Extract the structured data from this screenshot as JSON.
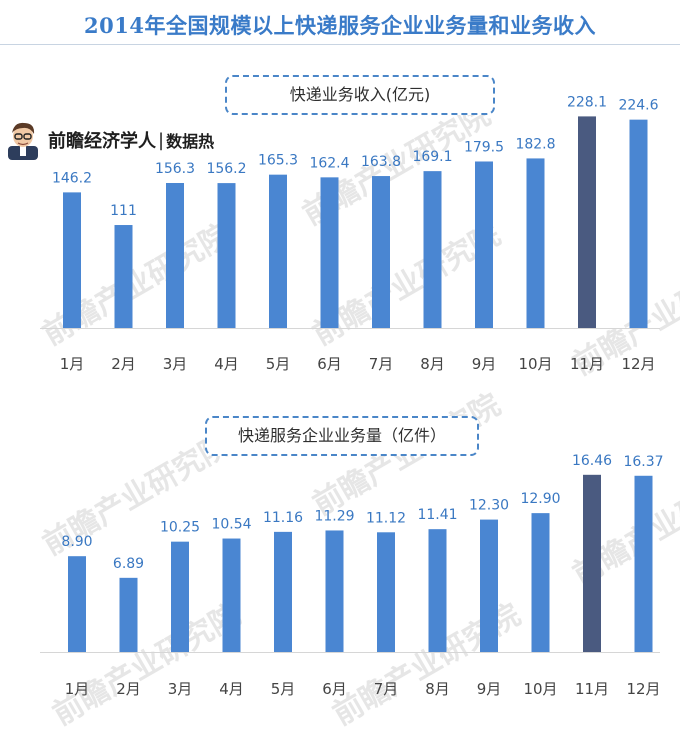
{
  "title": "2014年全国规模以上快递服务企业业务量和业务收入",
  "author": {
    "name": "前瞻经济学人",
    "separator": "|",
    "tag": "数据热"
  },
  "watermark": "前瞻产业研究院",
  "colors": {
    "bar": "#4a86d2",
    "highlight": "#4a5a80",
    "label": "#3a78c2",
    "axis": "#444444"
  },
  "chart_data": [
    {
      "type": "bar",
      "title": "快递业务收入(亿元)",
      "categories": [
        "1月",
        "2月",
        "3月",
        "4月",
        "5月",
        "6月",
        "7月",
        "8月",
        "9月",
        "10月",
        "11月",
        "12月"
      ],
      "values": [
        146.2,
        111,
        156.3,
        156.2,
        165.3,
        162.4,
        163.8,
        169.1,
        179.5,
        182.8,
        228.1,
        224.6
      ],
      "value_labels": [
        "146.2",
        "111",
        "156.3",
        "156.2",
        "165.3",
        "162.4",
        "163.8",
        "169.1",
        "179.5",
        "182.8",
        "228.1",
        "224.6"
      ],
      "highlight_index": 10,
      "ylim": [
        0,
        235
      ],
      "grid": false,
      "xlabel": "",
      "ylabel": ""
    },
    {
      "type": "bar",
      "title": "快递服务企业业务量（亿件）",
      "categories": [
        "1月",
        "2月",
        "3月",
        "4月",
        "5月",
        "6月",
        "7月",
        "8月",
        "9月",
        "10月",
        "11月",
        "12月"
      ],
      "values": [
        8.9,
        6.89,
        10.25,
        10.54,
        11.16,
        11.29,
        11.12,
        11.41,
        12.3,
        12.9,
        16.46,
        16.37
      ],
      "value_labels": [
        "8.90",
        "6.89",
        "10.25",
        "10.54",
        "11.16",
        "11.29",
        "11.12",
        "11.41",
        "12.30",
        "12.90",
        "16.46",
        "16.37"
      ],
      "highlight_index": 10,
      "ylim": [
        0,
        18.3
      ],
      "grid": false,
      "xlabel": "",
      "ylabel": ""
    }
  ]
}
